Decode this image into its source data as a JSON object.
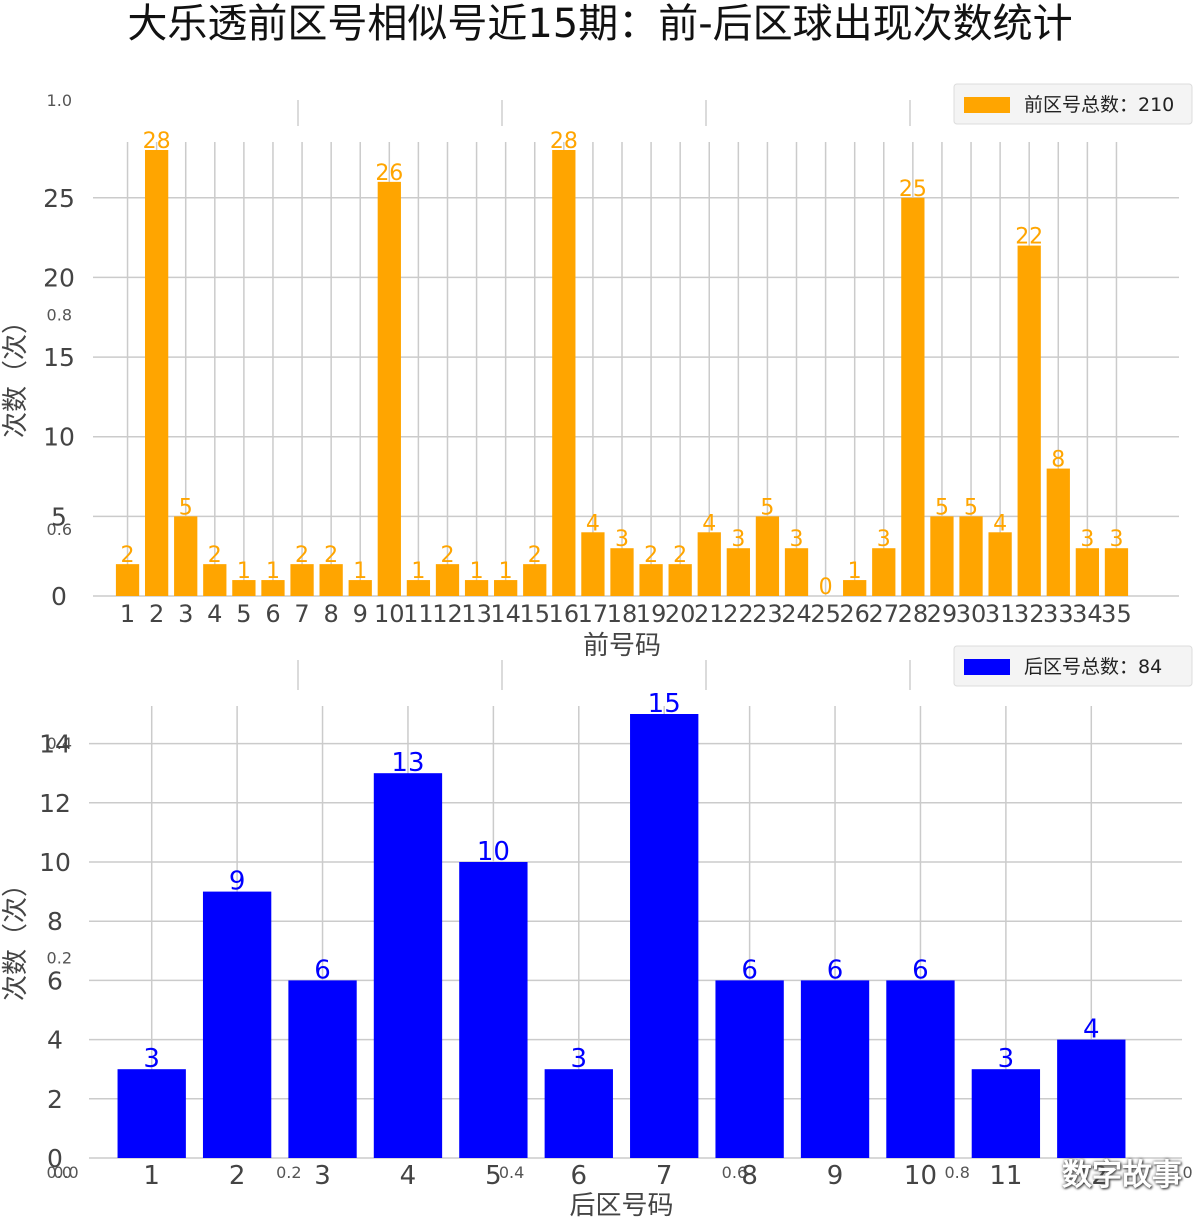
{
  "title": "大乐透前区号相似号近15期：前-后区球出现次数统计",
  "watermark": "数字故事",
  "chart_data": [
    {
      "type": "bar",
      "categories": [
        "1",
        "2",
        "3",
        "4",
        "5",
        "6",
        "7",
        "8",
        "9",
        "10",
        "11",
        "12",
        "13",
        "14",
        "15",
        "16",
        "17",
        "18",
        "19",
        "20",
        "21",
        "22",
        "23",
        "24",
        "25",
        "26",
        "27",
        "28",
        "29",
        "30",
        "31",
        "32",
        "33",
        "34",
        "35"
      ],
      "values": [
        2,
        28,
        5,
        2,
        1,
        1,
        2,
        2,
        1,
        26,
        1,
        2,
        1,
        1,
        2,
        28,
        4,
        3,
        2,
        2,
        4,
        3,
        5,
        3,
        0,
        1,
        3,
        25,
        5,
        5,
        4,
        22,
        8,
        3,
        3
      ],
      "series_name": "前区号总数：210",
      "color": "#ffa500",
      "xlabel": "前号码",
      "ylabel": "次数（次）",
      "yticks": [
        0,
        5,
        10,
        15,
        20,
        25
      ],
      "ylim": [
        0,
        28
      ],
      "grid": true,
      "legend": "top-right"
    },
    {
      "type": "bar",
      "categories": [
        "1",
        "2",
        "3",
        "4",
        "5",
        "6",
        "7",
        "8",
        "9",
        "10",
        "11",
        "12"
      ],
      "values": [
        3,
        9,
        6,
        13,
        10,
        3,
        15,
        6,
        6,
        6,
        3,
        4
      ],
      "series_name": "后区号总数：84",
      "color": "#0000ff",
      "xlabel": "后区号码",
      "ylabel": "次数（次）",
      "yticks": [
        0,
        2,
        4,
        6,
        8,
        10,
        12,
        14
      ],
      "ylim": [
        0,
        15
      ],
      "grid": true,
      "legend": "top-right"
    }
  ],
  "background_axis": {
    "left_ticks": [
      "1.0",
      "0.8",
      "0.6",
      "0.4",
      "0.2",
      "0.0"
    ],
    "bottom_ticks": [
      "0.0",
      "0.2",
      "0.4",
      "0.6",
      "0.8",
      "1.0"
    ]
  }
}
